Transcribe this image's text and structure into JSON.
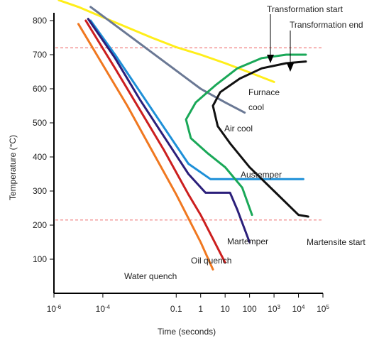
{
  "chart_data": {
    "type": "line",
    "xlabel": "Time (seconds)",
    "ylabel": "Temperature (°C)",
    "x_scale": "log",
    "xlim_exp": [
      -6,
      5
    ],
    "ylim": [
      0,
      850
    ],
    "x_ticks": [
      {
        "base": "10",
        "exp": "-6"
      },
      {
        "base": "10",
        "exp": "-4"
      },
      {
        "base": "0.1",
        "exp": ""
      },
      {
        "base": "1",
        "exp": ""
      },
      {
        "base": "10",
        "exp": ""
      },
      {
        "base": "100",
        "exp": ""
      },
      {
        "base": "10",
        "exp": "3"
      },
      {
        "base": "10",
        "exp": "4"
      },
      {
        "base": "10",
        "exp": "5"
      }
    ],
    "y_ticks": [
      100,
      200,
      300,
      400,
      500,
      600,
      700,
      800
    ],
    "reference_lines": [
      {
        "y": 720,
        "color": "#f07b7b"
      },
      {
        "y": 215,
        "color": "#f07b7b"
      }
    ],
    "annotations": {
      "transformation_start": "Transformation start",
      "transformation_end": "Transformation end",
      "furnace": "Furnace",
      "cool": "cool",
      "air_cool": "Air cool",
      "austemper": "Austemper",
      "martempter": "Martemper",
      "martensite_start": "Martensite start",
      "oil_quench": "Oil quench",
      "water_quench": "Water quench"
    },
    "series": [
      {
        "color": "#ffee1a",
        "points": [
          [
            -5.8,
            860
          ],
          [
            -5.0,
            840
          ],
          [
            -4.0,
            810
          ],
          [
            -3.0,
            780
          ],
          [
            -2.0,
            750
          ],
          [
            -1.0,
            722
          ],
          [
            0.0,
            700
          ],
          [
            1.0,
            675
          ],
          [
            2.0,
            648
          ],
          [
            3.0,
            620
          ]
        ]
      },
      {
        "color": "#6a7894",
        "points": [
          [
            -4.5,
            840
          ],
          [
            -3.0,
            760
          ],
          [
            -1.5,
            680
          ],
          [
            0.0,
            600
          ],
          [
            1.0,
            560
          ],
          [
            1.8,
            530
          ]
        ]
      },
      {
        "color": "#1e90d8",
        "points": [
          [
            -4.5,
            800
          ],
          [
            -3.5,
            700
          ],
          [
            -2.0,
            540
          ],
          [
            -0.5,
            380
          ],
          [
            0.4,
            335
          ],
          [
            1.0,
            335
          ],
          [
            2.0,
            335
          ],
          [
            3.0,
            335
          ],
          [
            4.2,
            335
          ]
        ]
      },
      {
        "color": "#2b1f7a",
        "points": [
          [
            -4.6,
            805
          ],
          [
            -3.5,
            690
          ],
          [
            -2.5,
            570
          ],
          [
            -1.5,
            460
          ],
          [
            -0.5,
            350
          ],
          [
            0.2,
            295
          ],
          [
            0.8,
            295
          ],
          [
            1.2,
            295
          ],
          [
            1.5,
            245
          ],
          [
            2.0,
            150
          ]
        ]
      },
      {
        "color": "#cc1f1f",
        "points": [
          [
            -4.7,
            800
          ],
          [
            -3.5,
            660
          ],
          [
            -2.5,
            540
          ],
          [
            -1.5,
            420
          ],
          [
            -0.5,
            290
          ],
          [
            0.0,
            230
          ],
          [
            0.5,
            160
          ],
          [
            1.0,
            90
          ]
        ]
      },
      {
        "color": "#f07820",
        "points": [
          [
            -5.0,
            790
          ],
          [
            -4.0,
            670
          ],
          [
            -3.0,
            550
          ],
          [
            -2.0,
            420
          ],
          [
            -1.0,
            290
          ],
          [
            -0.5,
            220
          ],
          [
            0.0,
            150
          ],
          [
            0.5,
            70
          ]
        ]
      },
      {
        "color": "#1aa858",
        "points": [
          [
            4.3,
            700
          ],
          [
            3.5,
            700
          ],
          [
            2.5,
            690
          ],
          [
            1.5,
            660
          ],
          [
            0.6,
            610
          ],
          [
            -0.2,
            560
          ],
          [
            -0.6,
            510
          ],
          [
            -0.4,
            455
          ],
          [
            0.3,
            410
          ],
          [
            1.0,
            370
          ],
          [
            1.7,
            310
          ],
          [
            2.1,
            230
          ]
        ]
      },
      {
        "color": "#111111",
        "points": [
          [
            4.3,
            680
          ],
          [
            3.5,
            675
          ],
          [
            2.5,
            660
          ],
          [
            1.6,
            630
          ],
          [
            0.8,
            590
          ],
          [
            0.5,
            550
          ],
          [
            0.7,
            490
          ],
          [
            1.2,
            440
          ],
          [
            2.0,
            370
          ],
          [
            3.0,
            300
          ],
          [
            4.0,
            230
          ],
          [
            4.4,
            225
          ]
        ]
      }
    ]
  }
}
